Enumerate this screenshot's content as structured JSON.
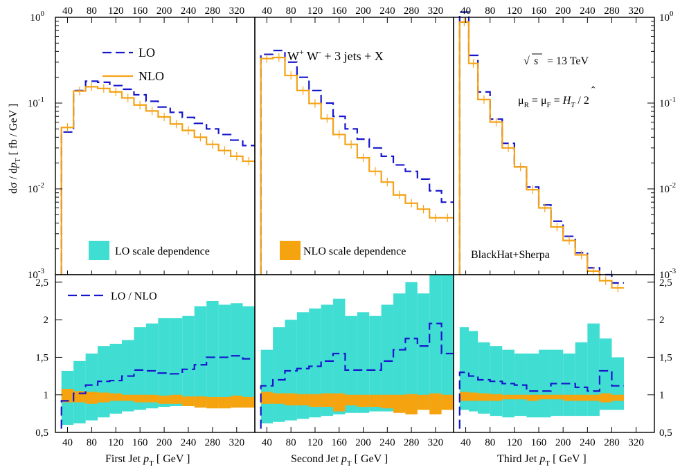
{
  "legend": {
    "lo": "LO",
    "nlo": "NLO",
    "lo_scale": "LO scale dependence",
    "nlo_scale": "NLO scale dependence",
    "ratio": "LO / NLO"
  },
  "annotations": {
    "process": {
      "w": "W",
      "plus": "+",
      "w2": "W",
      "minus": "-",
      "rest": " + 3 jets + X"
    },
    "sqrt": "√",
    "s": "s",
    "energy": " =  13 TeV",
    "mu": "μ",
    "r": "R",
    "eq1": "  =  μ",
    "f": "F",
    "eq2": "  =  ",
    "h": "H",
    "t": "T",
    "half": "  /  2",
    "generator": "BlackHat+Sherpa"
  },
  "axes": {
    "xlabels": [
      {
        "text": "First  Jet  ",
        "sym": "p",
        "sub": "T",
        "unit": "  [ GeV ]"
      },
      {
        "text": "Second  Jet  ",
        "sym": "p",
        "sub": "T",
        "unit": "  [ GeV ]"
      },
      {
        "text": "Third  Jet  ",
        "sym": "p",
        "sub": "T",
        "unit": "  [ GeV ]"
      }
    ],
    "ylabel": {
      "a": "dσ / d",
      "p": "p",
      "sub": "T",
      "unit": "   [ fb / GeV ]"
    },
    "xticks": [
      "40",
      "80",
      "120",
      "160",
      "200",
      "240",
      "280",
      "320"
    ],
    "xrange": [
      20,
      350
    ],
    "yticks_top": [
      {
        "base": "10",
        "exp": "0",
        "value": 1
      },
      {
        "base": "10",
        "exp": "-1",
        "value": 0.1
      },
      {
        "base": "10",
        "exp": "-2",
        "value": 0.01
      },
      {
        "base": "10",
        "exp": "-3",
        "value": 0.001
      }
    ],
    "yrange_top": [
      0.001,
      1
    ],
    "yticks_bottom": [
      "0,5",
      "1",
      "1,5",
      "2",
      "2,5"
    ],
    "yticks_bottom_values": [
      0.5,
      1,
      1.5,
      2,
      2.5
    ],
    "yrange_bottom": [
      0.5,
      2.6
    ]
  },
  "chart_data": [
    {
      "type": "line",
      "title": "First Jet pT",
      "xlabel": "First Jet pT [ GeV ]",
      "ylabel": "dσ / dpT [ fb / GeV ]",
      "yscale": "log",
      "x_edges": [
        30,
        50,
        70,
        90,
        110,
        130,
        150,
        170,
        190,
        210,
        230,
        250,
        270,
        290,
        310,
        330,
        350
      ],
      "series": [
        {
          "name": "LO",
          "values": [
            0.046,
            0.14,
            0.18,
            0.175,
            0.16,
            0.145,
            0.125,
            0.105,
            0.09,
            0.078,
            0.068,
            0.058,
            0.05,
            0.043,
            0.037,
            0.032
          ]
        },
        {
          "name": "NLO",
          "values": [
            0.052,
            0.138,
            0.155,
            0.148,
            0.135,
            0.115,
            0.095,
            0.081,
            0.069,
            0.057,
            0.048,
            0.04,
            0.033,
            0.028,
            0.024,
            0.021
          ]
        }
      ]
    },
    {
      "type": "line",
      "title": "Second Jet pT",
      "xlabel": "Second Jet pT [ GeV ]",
      "yscale": "log",
      "x_edges": [
        30,
        50,
        70,
        90,
        110,
        130,
        150,
        170,
        190,
        210,
        230,
        250,
        270,
        290,
        310,
        330,
        350
      ],
      "series": [
        {
          "name": "LO",
          "values": [
            0.37,
            0.41,
            0.3,
            0.2,
            0.14,
            0.1,
            0.07,
            0.05,
            0.038,
            0.03,
            0.024,
            0.019,
            0.016,
            0.013,
            0.0095,
            0.007
          ]
        },
        {
          "name": "NLO",
          "values": [
            0.33,
            0.34,
            0.21,
            0.14,
            0.099,
            0.066,
            0.043,
            0.033,
            0.023,
            0.016,
            0.012,
            0.0085,
            0.0068,
            0.0058,
            0.0046,
            0.0046
          ]
        }
      ]
    },
    {
      "type": "line",
      "title": "Third Jet pT",
      "xlabel": "Third Jet pT [ GeV ]",
      "yscale": "log",
      "x_edges": [
        30,
        45,
        60,
        80,
        100,
        120,
        140,
        160,
        180,
        200,
        220,
        240,
        260,
        280,
        300
      ],
      "series": [
        {
          "name": "LO",
          "values": [
            1.15,
            0.36,
            0.135,
            0.065,
            0.034,
            0.018,
            0.0105,
            0.0065,
            0.0042,
            0.0028,
            0.0018,
            0.0012,
            0.001,
            0.0008
          ]
        },
        {
          "name": "NLO",
          "values": [
            0.88,
            0.29,
            0.11,
            0.06,
            0.03,
            0.018,
            0.0098,
            0.006,
            0.0036,
            0.0025,
            0.0017,
            0.0011,
            0.00085,
            0.0007
          ]
        }
      ]
    },
    {
      "type": "area",
      "title": "First Jet pT ratio",
      "x_edges": [
        30,
        50,
        70,
        90,
        110,
        130,
        150,
        170,
        190,
        210,
        230,
        250,
        270,
        290,
        310,
        330,
        350
      ],
      "series": [
        {
          "name": "LO / NLO",
          "values": [
            0.92,
            1.02,
            1.13,
            1.18,
            1.19,
            1.25,
            1.33,
            1.32,
            1.29,
            1.28,
            1.34,
            1.4,
            1.5,
            1.5,
            1.52,
            1.48
          ]
        },
        {
          "name": "LO scale dependence",
          "low": [
            0.6,
            0.62,
            0.66,
            0.7,
            0.75,
            0.78,
            0.8,
            0.82,
            0.84,
            0.85,
            0.86,
            0.88,
            0.88,
            0.89,
            0.9,
            0.9
          ],
          "high": [
            1.32,
            1.45,
            1.55,
            1.65,
            1.68,
            1.73,
            1.9,
            1.95,
            2.02,
            2.02,
            2.05,
            2.18,
            2.25,
            2.2,
            2.22,
            2.18
          ]
        },
        {
          "name": "NLO scale dependence",
          "low": [
            0.9,
            0.9,
            0.88,
            0.9,
            0.92,
            0.92,
            0.9,
            0.9,
            0.88,
            0.88,
            0.85,
            0.83,
            0.82,
            0.82,
            0.83,
            0.83
          ],
          "high": [
            1.08,
            1.05,
            1.04,
            1.03,
            1.02,
            1.0,
            1.0,
            1.0,
            0.99,
            1.0,
            0.98,
            0.98,
            0.97,
            0.97,
            0.99,
            0.97
          ]
        }
      ]
    },
    {
      "type": "area",
      "title": "Second Jet pT ratio",
      "x_edges": [
        30,
        50,
        70,
        90,
        110,
        130,
        150,
        170,
        190,
        210,
        230,
        250,
        270,
        290,
        310,
        330,
        350
      ],
      "series": [
        {
          "name": "LO / NLO",
          "values": [
            1.12,
            1.2,
            1.32,
            1.35,
            1.38,
            1.45,
            1.55,
            1.33,
            1.33,
            1.33,
            1.45,
            1.6,
            1.75,
            1.65,
            1.95,
            1.55
          ]
        },
        {
          "name": "LO scale dependence",
          "low": [
            0.62,
            0.64,
            0.66,
            0.68,
            0.7,
            0.72,
            0.74,
            0.76,
            0.76,
            0.78,
            0.78,
            0.8,
            0.8,
            0.81,
            0.82,
            0.82
          ],
          "high": [
            1.6,
            1.9,
            2.0,
            2.1,
            2.15,
            2.2,
            2.28,
            2.05,
            2.1,
            2.05,
            2.2,
            2.35,
            2.5,
            2.35,
            2.6,
            2.6
          ]
        },
        {
          "name": "NLO scale dependence",
          "low": [
            0.88,
            0.88,
            0.86,
            0.86,
            0.84,
            0.84,
            0.78,
            0.86,
            0.84,
            0.84,
            0.82,
            0.76,
            0.74,
            0.8,
            0.74,
            0.8
          ],
          "high": [
            1.04,
            1.02,
            1.02,
            1.01,
            1.01,
            1.02,
            1.02,
            1.0,
            1.0,
            1.0,
            1.0,
            1.0,
            1.01,
            1.0,
            1.02,
            1.0
          ]
        }
      ]
    },
    {
      "type": "area",
      "title": "Third Jet pT ratio",
      "x_edges": [
        30,
        45,
        60,
        80,
        100,
        120,
        140,
        160,
        180,
        200,
        220,
        240,
        260,
        280,
        300
      ],
      "series": [
        {
          "name": "LO / NLO",
          "values": [
            1.3,
            1.25,
            1.2,
            1.18,
            1.15,
            1.13,
            1.05,
            1.05,
            1.15,
            1.15,
            1.1,
            1.05,
            1.32,
            1.12
          ]
        },
        {
          "name": "LO scale dependence",
          "low": [
            0.8,
            0.78,
            0.75,
            0.72,
            0.7,
            0.72,
            0.7,
            0.7,
            0.72,
            0.72,
            0.72,
            0.72,
            0.8,
            0.8
          ]
        },
        {
          "name": "NLO scale dependence",
          "low": [
            0.92,
            0.92,
            0.92,
            0.92,
            0.94,
            0.94,
            0.92,
            0.94,
            0.94,
            0.92,
            0.92,
            0.92,
            0.9,
            0.92
          ]
        }
      ]
    }
  ],
  "colors": {
    "lo": "#1515cc",
    "nlo": "#f5a216",
    "lo_band": "#40ddd3",
    "nlo_band": "#f5a30f"
  }
}
